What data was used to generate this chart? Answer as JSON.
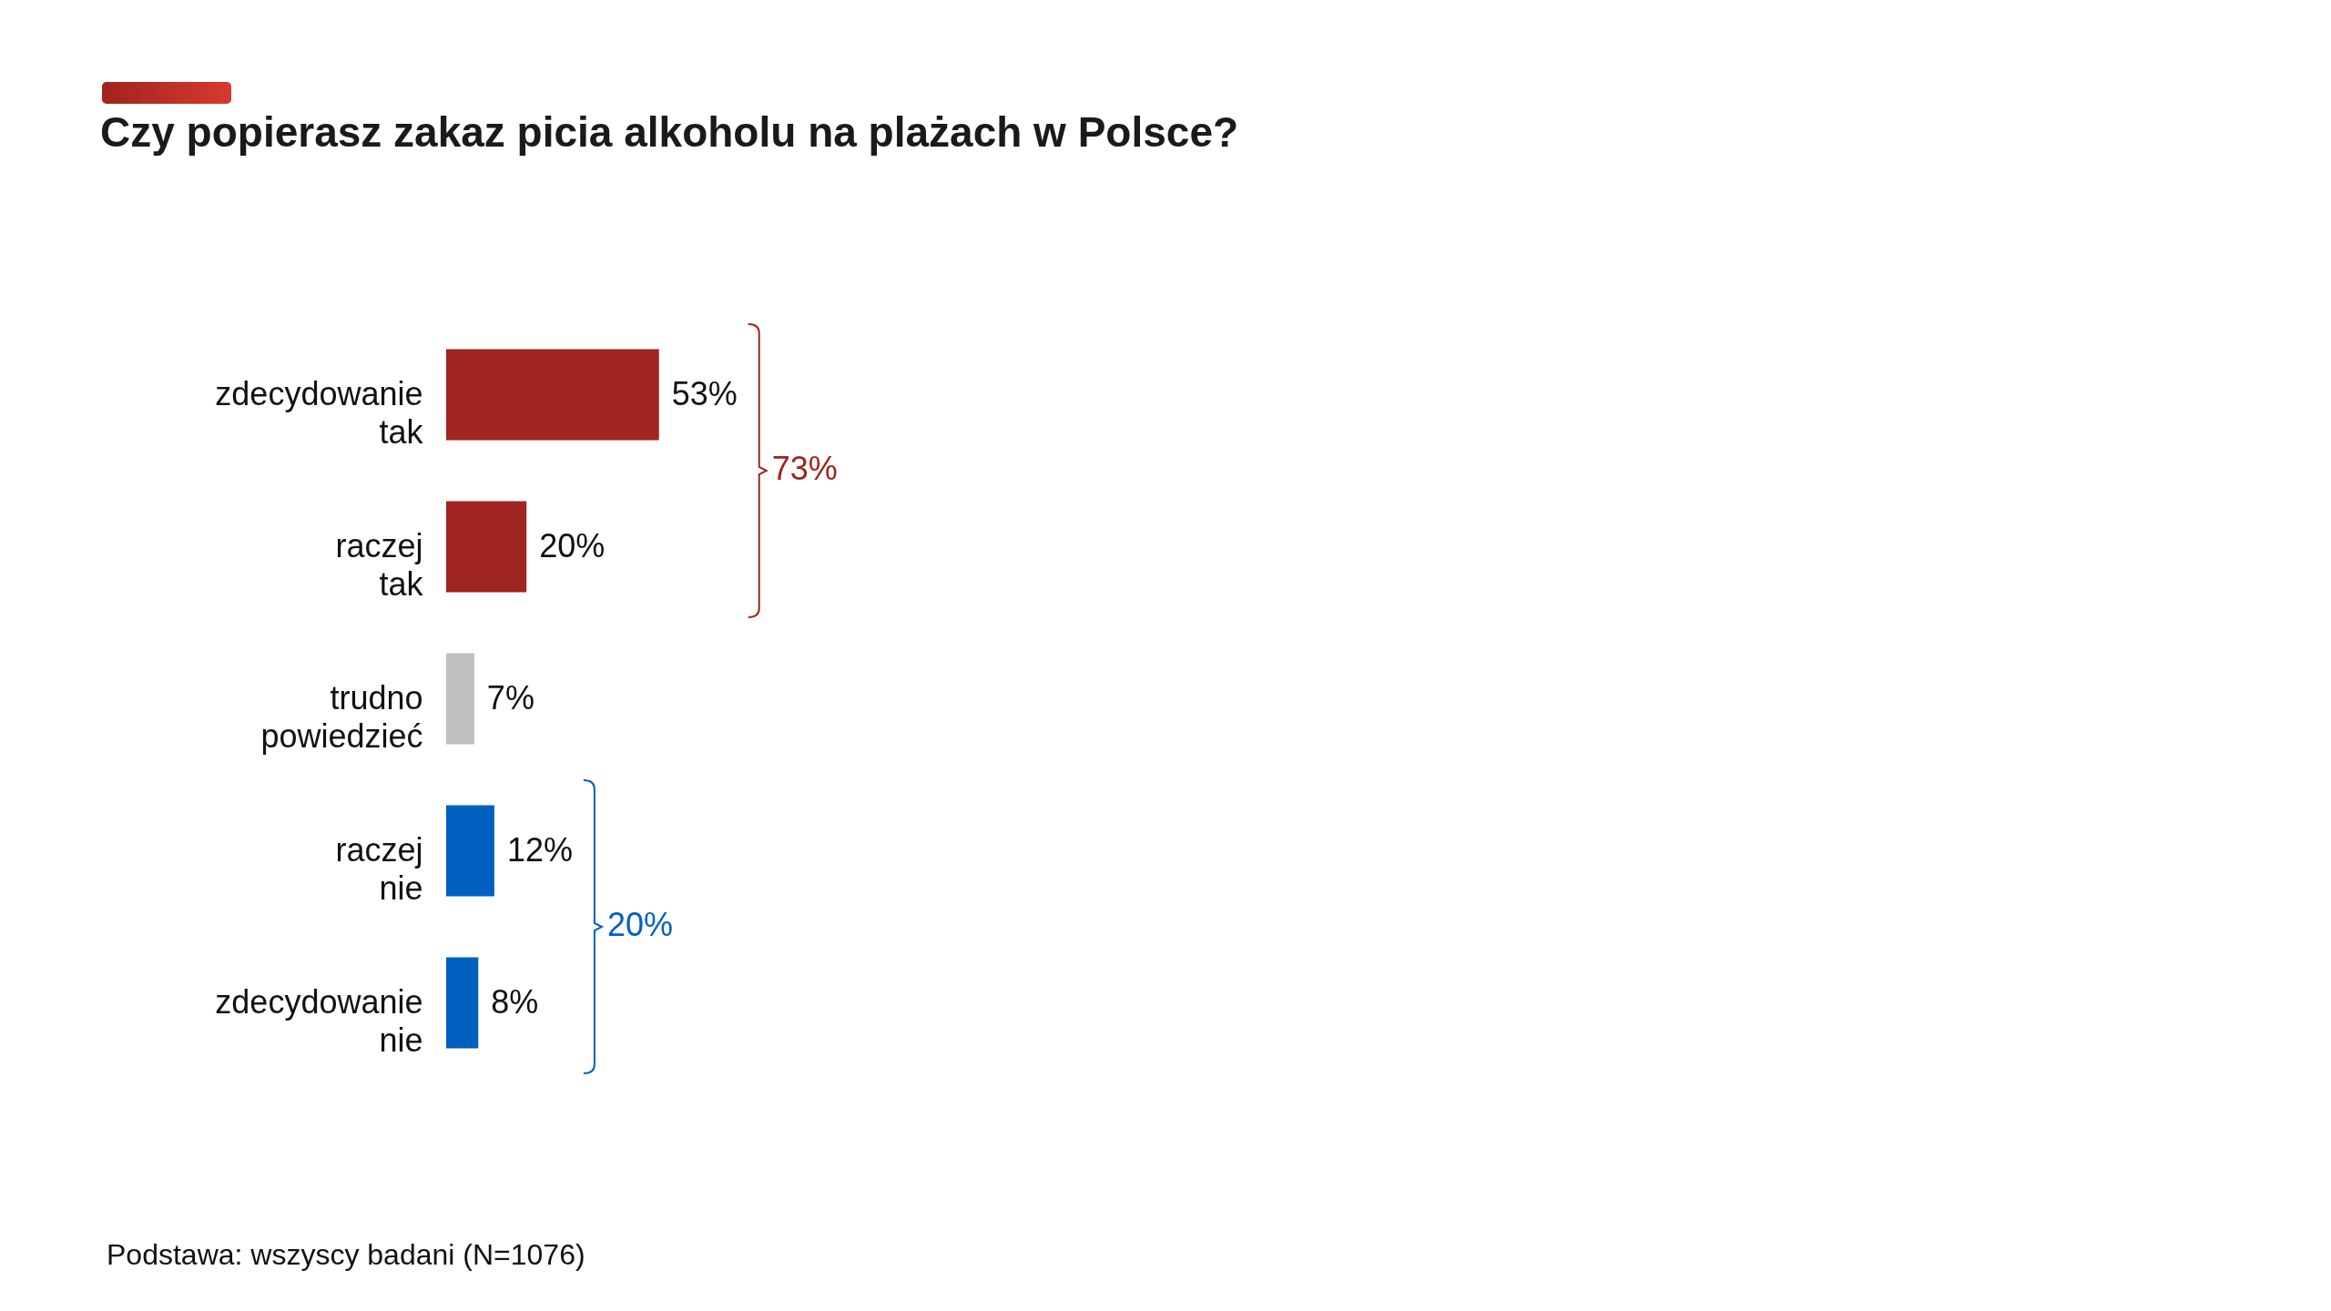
{
  "chart_data": {
    "type": "bar",
    "orientation": "horizontal",
    "title": "Czy popierasz zakaz picia alkoholu na plażach w Polsce?",
    "categories": [
      "zdecydowanie tak",
      "raczej tak",
      "trudno powiedzieć",
      "raczej nie",
      "zdecydowanie nie"
    ],
    "values": [
      53,
      20,
      7,
      12,
      8
    ],
    "colors": [
      "#a0241f",
      "#a0241f",
      "#c0c0c0",
      "#0060c0",
      "#0060c0"
    ],
    "data_labels": true,
    "value_labels": [
      "53%",
      "20%",
      "7%",
      "12%",
      "8%"
    ],
    "annotations": [
      "73%",
      "20%",
      "Podstawa: wszyscy badani (N=1076)"
    ]
  }
}
